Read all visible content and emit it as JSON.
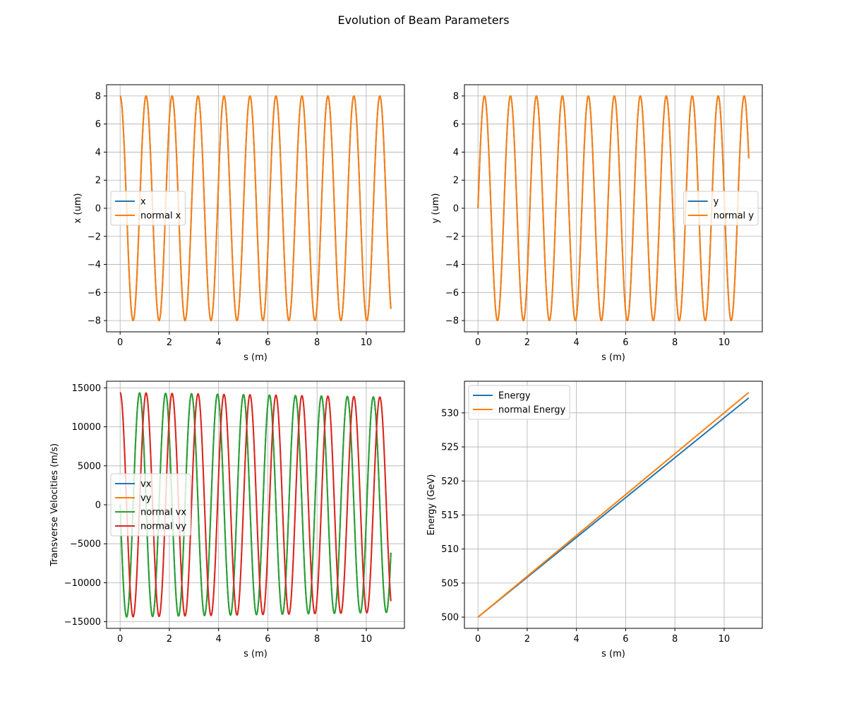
{
  "figure": {
    "title": "Evolution of Beam Parameters"
  },
  "chart_data": [
    {
      "id": "x",
      "type": "line",
      "xlabel": "s (m)",
      "ylabel": "x (um)",
      "xlim": [
        -0.55,
        11.55
      ],
      "ylim": [
        -8.8,
        8.8
      ],
      "xticks": [
        0,
        2,
        4,
        6,
        8,
        10
      ],
      "yticks": [
        -8,
        -6,
        -4,
        -2,
        0,
        2,
        4,
        6,
        8
      ],
      "grid": true,
      "legend_position": "center-left",
      "series": [
        {
          "name": "x",
          "color": "#1f77b4",
          "func": "cos",
          "amplitude": 8,
          "period": 1.055,
          "phase": 0,
          "x_range": [
            0,
            11
          ]
        },
        {
          "name": "normal x",
          "color": "#ff7f0e",
          "func": "cos",
          "amplitude": 8,
          "period": 1.055,
          "phase": 0,
          "x_range": [
            0,
            11
          ]
        }
      ]
    },
    {
      "id": "y",
      "type": "line",
      "xlabel": "s (m)",
      "ylabel": "y (um)",
      "xlim": [
        -0.55,
        11.55
      ],
      "ylim": [
        -8.8,
        8.8
      ],
      "xticks": [
        0,
        2,
        4,
        6,
        8,
        10
      ],
      "yticks": [
        -8,
        -6,
        -4,
        -2,
        0,
        2,
        4,
        6,
        8
      ],
      "grid": true,
      "legend_position": "center-right",
      "series": [
        {
          "name": "y",
          "color": "#1f77b4",
          "func": "sin",
          "amplitude": 8,
          "period": 1.055,
          "phase": 0,
          "x_range": [
            0,
            11
          ]
        },
        {
          "name": "normal y",
          "color": "#ff7f0e",
          "func": "sin",
          "amplitude": 8,
          "period": 1.055,
          "phase": 0,
          "x_range": [
            0,
            11
          ]
        }
      ]
    },
    {
      "id": "v",
      "type": "line",
      "xlabel": "s (m)",
      "ylabel": "Transverse Velocities (m/s)",
      "xlim": [
        -0.55,
        11.55
      ],
      "ylim": [
        -15850,
        15850
      ],
      "xticks": [
        0,
        2,
        4,
        6,
        8,
        10
      ],
      "yticks": [
        -15000,
        -10000,
        -5000,
        0,
        5000,
        10000,
        15000
      ],
      "grid": true,
      "legend_position": "center-left",
      "series": [
        {
          "name": "vx",
          "color": "#1f77b4",
          "func": "negsin",
          "amplitude": 14400,
          "amplitude_end": 13800,
          "period": 1.055,
          "phase": 0,
          "x_range": [
            0,
            11
          ]
        },
        {
          "name": "vy",
          "color": "#ff7f0e",
          "func": "cos",
          "amplitude": 14400,
          "amplitude_end": 13800,
          "period": 1.055,
          "phase": 0,
          "x_range": [
            0,
            11
          ]
        },
        {
          "name": "normal vx",
          "color": "#2ca02c",
          "func": "negsin",
          "amplitude": 14400,
          "amplitude_end": 13800,
          "period": 1.055,
          "phase": 0,
          "x_range": [
            0,
            11
          ]
        },
        {
          "name": "normal vy",
          "color": "#d62728",
          "func": "cos",
          "amplitude": 14400,
          "amplitude_end": 13800,
          "period": 1.055,
          "phase": 0,
          "x_range": [
            0,
            11
          ]
        }
      ]
    },
    {
      "id": "E",
      "type": "line",
      "xlabel": "s (m)",
      "ylabel": "Energy (GeV)",
      "xlim": [
        -0.55,
        11.55
      ],
      "ylim": [
        498.35,
        534.65
      ],
      "xticks": [
        0,
        2,
        4,
        6,
        8,
        10
      ],
      "yticks": [
        500,
        505,
        510,
        515,
        520,
        525,
        530
      ],
      "grid": true,
      "legend_position": "top-left",
      "series": [
        {
          "name": "Energy",
          "color": "#1f77b4",
          "x": [
            0,
            11
          ],
          "y": [
            500,
            532.2
          ]
        },
        {
          "name": "normal Energy",
          "color": "#ff7f0e",
          "x": [
            0,
            11
          ],
          "y": [
            500,
            533.0
          ]
        }
      ]
    }
  ]
}
